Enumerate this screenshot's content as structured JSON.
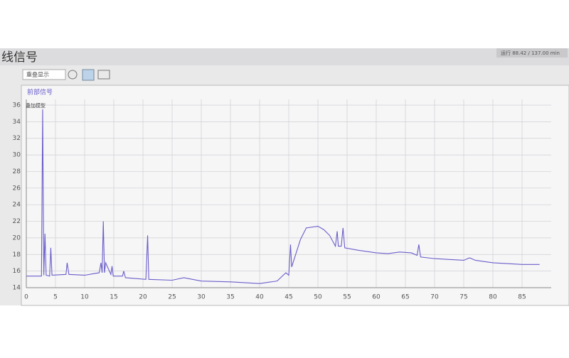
{
  "header": {
    "title": "线信号",
    "status": "运行 88.42 / 137.00 min"
  },
  "toolbar": {
    "mode": "重叠显示"
  },
  "panel": {
    "tab": "前部信号",
    "legend_label": "叠加模型"
  },
  "chart_data": {
    "type": "line",
    "x": [
      0,
      2.6,
      2.8,
      3.0,
      3.2,
      3.4,
      4.0,
      4.2,
      4.4,
      6.8,
      7.0,
      7.3,
      10,
      12.5,
      12.8,
      13.0,
      13.2,
      13.4,
      13.6,
      14.5,
      14.7,
      14.9,
      16.5,
      16.7,
      17,
      20.5,
      20.8,
      21.0,
      25,
      27,
      30,
      35,
      40,
      43,
      44.5,
      45.0,
      45.3,
      45.5,
      47,
      48,
      50,
      51,
      52,
      53,
      53.3,
      53.5,
      54,
      54.3,
      54.6,
      57,
      60,
      62,
      64,
      66,
      67,
      67.3,
      67.6,
      70,
      75,
      76,
      77,
      80,
      85,
      88
    ],
    "series": [
      {
        "color": "#6a5ec9",
        "values": [
          15.4,
          15.4,
          35.5,
          15.5,
          20.5,
          15.5,
          15.4,
          18.8,
          15.5,
          15.6,
          17.0,
          15.6,
          15.5,
          15.8,
          17.0,
          15.8,
          22.0,
          15.8,
          17.0,
          15.6,
          16.6,
          15.4,
          15.4,
          16.0,
          15.2,
          15.0,
          20.3,
          15.0,
          14.9,
          15.2,
          14.8,
          14.7,
          14.5,
          14.8,
          15.8,
          15.5,
          19.2,
          16.5,
          19.8,
          21.2,
          21.4,
          21.0,
          20.3,
          19.0,
          20.8,
          19.0,
          19.0,
          21.2,
          18.8,
          18.5,
          18.2,
          18.1,
          18.3,
          18.2,
          17.9,
          19.2,
          17.7,
          17.5,
          17.3,
          17.6,
          17.3,
          17.0,
          16.8,
          16.8
        ]
      }
    ],
    "xlim": [
      0,
      90
    ],
    "xticks": [
      0,
      5,
      10,
      15,
      20,
      25,
      30,
      35,
      40,
      45,
      50,
      55,
      60,
      65,
      70,
      75,
      80,
      85
    ],
    "ylim": [
      14,
      36
    ],
    "yticks": [
      14,
      16,
      18,
      20,
      22,
      24,
      26,
      28,
      30,
      32,
      34,
      36
    ],
    "grid": true
  }
}
